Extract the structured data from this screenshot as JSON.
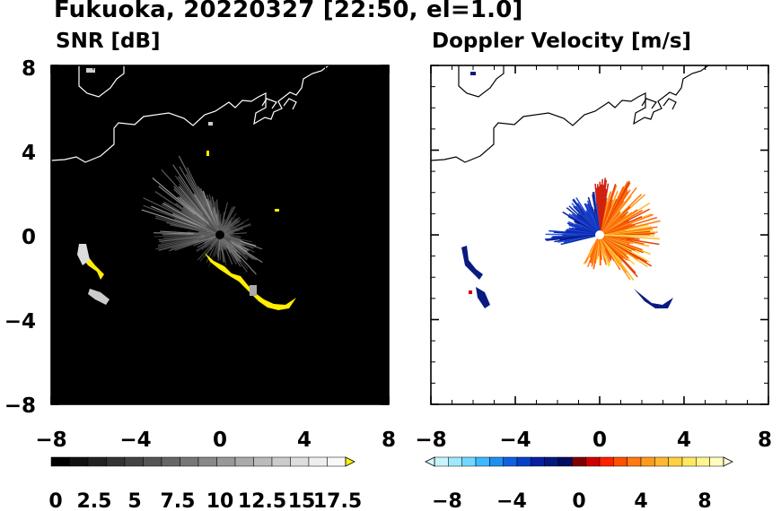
{
  "title": "Fukuoka, 20220327 [22:50, el=1.0]",
  "colors": {
    "snr_background": "#000000",
    "coast_snr": "#ffffff",
    "coast_doppler": "#000000",
    "echo_highlight": "#ffee00",
    "velocity_negative": "#1030c0",
    "velocity_positive": "#ff6a10"
  },
  "chart_data": [
    {
      "type": "heatmap",
      "title": "SNR [dB]",
      "xlim": [
        -8,
        8
      ],
      "ylim": [
        -8,
        8
      ],
      "x_ticks": [
        "−8",
        "−4",
        "0",
        "4",
        "8"
      ],
      "y_ticks": [
        "8",
        "4",
        "0",
        "−4",
        "−8"
      ],
      "colorbar": {
        "range": [
          0,
          20
        ],
        "labels": [
          "0",
          "2.5",
          "5",
          "7.5",
          "10",
          "12.5",
          "15",
          "17.5"
        ],
        "colors": [
          "#000000",
          "#111111",
          "#222222",
          "#333333",
          "#444444",
          "#555555",
          "#666666",
          "#777777",
          "#888888",
          "#999999",
          "#aaaaaa",
          "#bbbbbb",
          "#cccccc",
          "#dddddd",
          "#eeeeee",
          "#f8f8f8"
        ],
        "extend_color": "#ffee00"
      }
    },
    {
      "type": "heatmap",
      "title": "Doppler Velocity [m/s]",
      "xlim": [
        -8,
        8
      ],
      "ylim": [
        -8,
        8
      ],
      "x_ticks": [
        "−8",
        "−4",
        "0",
        "4",
        "8"
      ],
      "y_ticks": [],
      "colorbar": {
        "range": [
          -10,
          10
        ],
        "labels": [
          "−8",
          "−4",
          "0",
          "4",
          "8"
        ],
        "colors": [
          "#c8f4ff",
          "#a0e8ff",
          "#70d8ff",
          "#40b8ff",
          "#2090f0",
          "#1060e0",
          "#0840c8",
          "#0620a0",
          "#041880",
          "#020c60",
          "#800000",
          "#d00000",
          "#ff2000",
          "#ff5000",
          "#ff7a10",
          "#ff9a20",
          "#ffb830",
          "#ffd040",
          "#ffe860",
          "#fff490",
          "#fffcc0"
        ],
        "extend_low_color": "#d8f8ff",
        "extend_high_color": "#fffce0"
      }
    }
  ]
}
